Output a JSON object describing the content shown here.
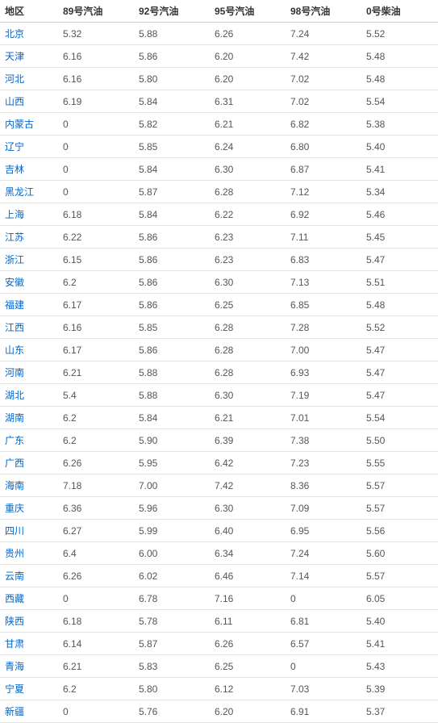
{
  "table": {
    "type": "table",
    "background_color": "#ffffff",
    "border_color": "#e5e5e5",
    "header_border_color": "#cccccc",
    "header_text_color": "#333333",
    "cell_text_color": "#555555",
    "region_link_color": "#0066cc",
    "font_size": 12,
    "columns": [
      {
        "key": "region",
        "label": "地区",
        "width": 72
      },
      {
        "key": "g89",
        "label": "89号汽油",
        "width": 94
      },
      {
        "key": "g92",
        "label": "92号汽油",
        "width": 94
      },
      {
        "key": "g95",
        "label": "95号汽油",
        "width": 94
      },
      {
        "key": "g98",
        "label": "98号汽油",
        "width": 94
      },
      {
        "key": "d0",
        "label": "0号柴油",
        "width": 95
      }
    ],
    "rows": [
      {
        "region": "北京",
        "g89": "5.32",
        "g92": "5.88",
        "g95": "6.26",
        "g98": "7.24",
        "d0": "5.52"
      },
      {
        "region": "天津",
        "g89": "6.16",
        "g92": "5.86",
        "g95": "6.20",
        "g98": "7.42",
        "d0": "5.48"
      },
      {
        "region": "河北",
        "g89": "6.16",
        "g92": "5.80",
        "g95": "6.20",
        "g98": "7.02",
        "d0": "5.48"
      },
      {
        "region": "山西",
        "g89": "6.19",
        "g92": "5.84",
        "g95": "6.31",
        "g98": "7.02",
        "d0": "5.54"
      },
      {
        "region": "内蒙古",
        "g89": "0",
        "g92": "5.82",
        "g95": "6.21",
        "g98": "6.82",
        "d0": "5.38"
      },
      {
        "region": "辽宁",
        "g89": "0",
        "g92": "5.85",
        "g95": "6.24",
        "g98": "6.80",
        "d0": "5.40"
      },
      {
        "region": "吉林",
        "g89": "0",
        "g92": "5.84",
        "g95": "6.30",
        "g98": "6.87",
        "d0": "5.41"
      },
      {
        "region": "黑龙江",
        "g89": "0",
        "g92": "5.87",
        "g95": "6.28",
        "g98": "7.12",
        "d0": "5.34"
      },
      {
        "region": "上海",
        "g89": "6.18",
        "g92": "5.84",
        "g95": "6.22",
        "g98": "6.92",
        "d0": "5.46"
      },
      {
        "region": "江苏",
        "g89": "6.22",
        "g92": "5.86",
        "g95": "6.23",
        "g98": "7.11",
        "d0": "5.45"
      },
      {
        "region": "浙江",
        "g89": "6.15",
        "g92": "5.86",
        "g95": "6.23",
        "g98": "6.83",
        "d0": "5.47"
      },
      {
        "region": "安徽",
        "g89": "6.2",
        "g92": "5.86",
        "g95": "6.30",
        "g98": "7.13",
        "d0": "5.51"
      },
      {
        "region": "福建",
        "g89": "6.17",
        "g92": "5.86",
        "g95": "6.25",
        "g98": "6.85",
        "d0": "5.48"
      },
      {
        "region": "江西",
        "g89": "6.16",
        "g92": "5.85",
        "g95": "6.28",
        "g98": "7.28",
        "d0": "5.52"
      },
      {
        "region": "山东",
        "g89": "6.17",
        "g92": "5.86",
        "g95": "6.28",
        "g98": "7.00",
        "d0": "5.47"
      },
      {
        "region": "河南",
        "g89": "6.21",
        "g92": "5.88",
        "g95": "6.28",
        "g98": "6.93",
        "d0": "5.47"
      },
      {
        "region": "湖北",
        "g89": "5.4",
        "g92": "5.88",
        "g95": "6.30",
        "g98": "7.19",
        "d0": "5.47"
      },
      {
        "region": "湖南",
        "g89": "6.2",
        "g92": "5.84",
        "g95": "6.21",
        "g98": "7.01",
        "d0": "5.54"
      },
      {
        "region": "广东",
        "g89": "6.2",
        "g92": "5.90",
        "g95": "6.39",
        "g98": "7.38",
        "d0": "5.50"
      },
      {
        "region": "广西",
        "g89": "6.26",
        "g92": "5.95",
        "g95": "6.42",
        "g98": "7.23",
        "d0": "5.55"
      },
      {
        "region": "海南",
        "g89": "7.18",
        "g92": "7.00",
        "g95": "7.42",
        "g98": "8.36",
        "d0": "5.57"
      },
      {
        "region": "重庆",
        "g89": "6.36",
        "g92": "5.96",
        "g95": "6.30",
        "g98": "7.09",
        "d0": "5.57"
      },
      {
        "region": "四川",
        "g89": "6.27",
        "g92": "5.99",
        "g95": "6.40",
        "g98": "6.95",
        "d0": "5.56"
      },
      {
        "region": "贵州",
        "g89": "6.4",
        "g92": "6.00",
        "g95": "6.34",
        "g98": "7.24",
        "d0": "5.60"
      },
      {
        "region": "云南",
        "g89": "6.26",
        "g92": "6.02",
        "g95": "6.46",
        "g98": "7.14",
        "d0": "5.57"
      },
      {
        "region": "西藏",
        "g89": "0",
        "g92": "6.78",
        "g95": "7.16",
        "g98": "0",
        "d0": "6.05"
      },
      {
        "region": "陕西",
        "g89": "6.18",
        "g92": "5.78",
        "g95": "6.11",
        "g98": "6.81",
        "d0": "5.40"
      },
      {
        "region": "甘肃",
        "g89": "6.14",
        "g92": "5.87",
        "g95": "6.26",
        "g98": "6.57",
        "d0": "5.41"
      },
      {
        "region": "青海",
        "g89": "6.21",
        "g92": "5.83",
        "g95": "6.25",
        "g98": "0",
        "d0": "5.43"
      },
      {
        "region": "宁夏",
        "g89": "6.2",
        "g92": "5.80",
        "g95": "6.12",
        "g98": "7.03",
        "d0": "5.39"
      },
      {
        "region": "新疆",
        "g89": "0",
        "g92": "5.76",
        "g95": "6.20",
        "g98": "6.91",
        "d0": "5.37"
      }
    ]
  }
}
